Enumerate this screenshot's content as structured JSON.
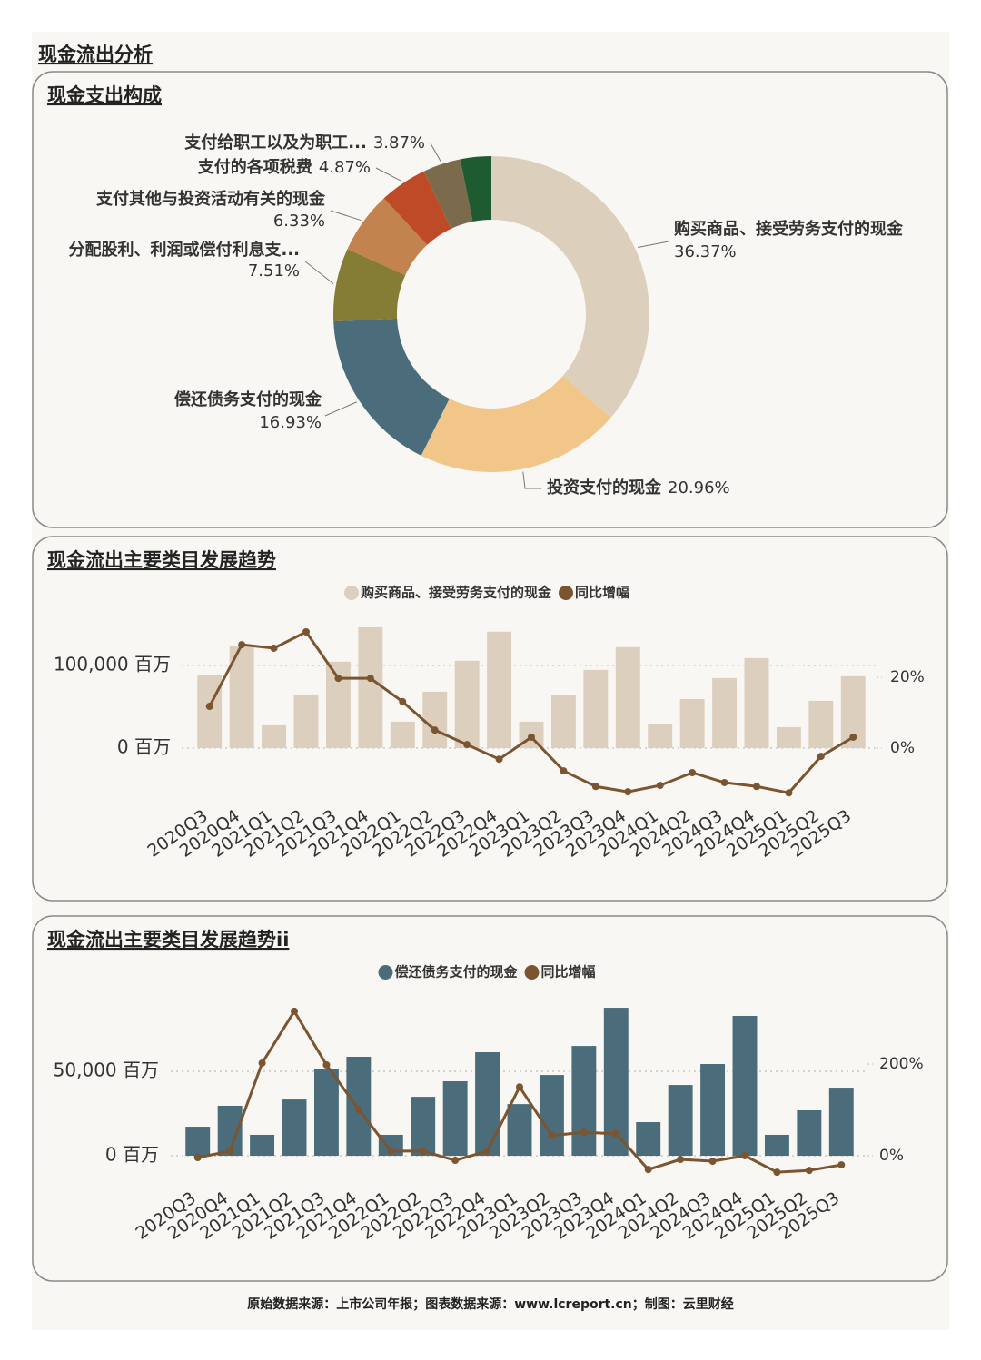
{
  "title": "现金流出分析",
  "footer": "原始数据来源：上市公司年报；图表数据来源：www.lcreport.cn；制图：云里财经",
  "chart_data": [
    {
      "type": "pie",
      "title": "现金支出构成",
      "donut": true,
      "categories": [
        "购买商品、接受劳务支付的现金",
        "投资支付的现金",
        "偿还债务支付的现金",
        "分配股利、利润或偿付利息支...",
        "支付其他与投资活动有关的现金",
        "支付的各项税费",
        "支付给职工以及为职工...",
        null
      ],
      "values": [
        36.37,
        20.96,
        16.93,
        7.51,
        6.33,
        4.87,
        3.87,
        3.16
      ],
      "value_labels": [
        "36.37%",
        "20.96%",
        "16.93%",
        "7.51%",
        "6.33%",
        "4.87%",
        "3.87%",
        null
      ],
      "colors": [
        "#dccfbc",
        "#f2c688",
        "#4b6c7b",
        "#857c35",
        "#c3834e",
        "#be4a27",
        "#7b6a4b",
        "#1e5b30"
      ]
    },
    {
      "type": "combo",
      "title": "现金流出主要类目发展趋势",
      "categories": [
        "2020Q3",
        "2020Q4",
        "2021Q1",
        "2021Q2",
        "2021Q3",
        "2021Q4",
        "2022Q1",
        "2022Q2",
        "2022Q3",
        "2022Q4",
        "2023Q1",
        "2023Q2",
        "2023Q3",
        "2023Q4",
        "2024Q1",
        "2024Q2",
        "2024Q3",
        "2024Q4",
        "2025Q1",
        "2025Q2",
        "2025Q3"
      ],
      "series": [
        {
          "name": "购买商品、接受劳务支付的现金",
          "type": "bar",
          "color": "#dccfbd",
          "values": [
            88000,
            123000,
            27500,
            64800,
            104400,
            146000,
            31900,
            68100,
            105500,
            140700,
            31900,
            63700,
            94500,
            122000,
            28600,
            59300,
            84600,
            108800,
            25300,
            57100,
            86800
          ]
        },
        {
          "name": "同比增幅",
          "type": "line",
          "axis": "y2",
          "color": "#7b5430",
          "values": [
            11.8,
            29.2,
            28.2,
            32.8,
            19.7,
            19.7,
            13.1,
            5.1,
            1.0,
            -3.1,
            3.1,
            -6.4,
            -10.8,
            -12.3,
            -10.5,
            -6.9,
            -9.7,
            -10.8,
            -12.6,
            -2.3,
            3.1
          ]
        }
      ],
      "ylim": [
        -67000,
        158000
      ],
      "yticks": [
        {
          "value": 0,
          "label": "0 百万"
        },
        {
          "value": 100000,
          "label": "100,000 百万"
        }
      ],
      "y2lim": [
        -15.6,
        36.9
      ],
      "y2ticks": [
        {
          "value": 0,
          "label": "0%"
        },
        {
          "value": 20,
          "label": "20%"
        }
      ],
      "grid": true,
      "legend": "top"
    },
    {
      "type": "combo",
      "title": "现金流出主要类目发展趋势ii",
      "categories": [
        "2020Q3",
        "2020Q4",
        "2021Q1",
        "2021Q2",
        "2021Q3",
        "2021Q4",
        "2022Q1",
        "2022Q2",
        "2022Q3",
        "2022Q4",
        "2023Q1",
        "2023Q2",
        "2023Q3",
        "2023Q4",
        "2024Q1",
        "2024Q2",
        "2024Q3",
        "2024Q4",
        "2025Q1",
        "2025Q2",
        "2025Q3"
      ],
      "series": [
        {
          "name": "偿还债务支付的现金",
          "type": "bar",
          "color": "#4b6c7b",
          "values": [
            17200,
            29600,
            12400,
            33300,
            51100,
            58600,
            12400,
            34900,
            44100,
            61300,
            30600,
            47800,
            65000,
            87600,
            19900,
            41900,
            54300,
            82800,
            12400,
            26900,
            40300
          ]
        },
        {
          "name": "同比增幅",
          "type": "line",
          "axis": "y2",
          "color": "#7b5430",
          "values": [
            -4,
            10,
            202,
            315,
            198,
            101,
            10,
            10,
            -10,
            10,
            150,
            44,
            51,
            48,
            -30,
            -8,
            -12,
            0,
            -36,
            -32,
            -20
          ]
        }
      ],
      "ylim": [
        -11800,
        93000
      ],
      "yticks": [
        {
          "value": 0,
          "label": "0 百万"
        },
        {
          "value": 50000,
          "label": "50,000 百万"
        }
      ],
      "y2lim": [
        -43.6,
        342.5
      ],
      "y2ticks": [
        {
          "value": 0,
          "label": "0%"
        },
        {
          "value": 200,
          "label": "200%"
        }
      ],
      "grid": true,
      "legend": "top"
    }
  ]
}
